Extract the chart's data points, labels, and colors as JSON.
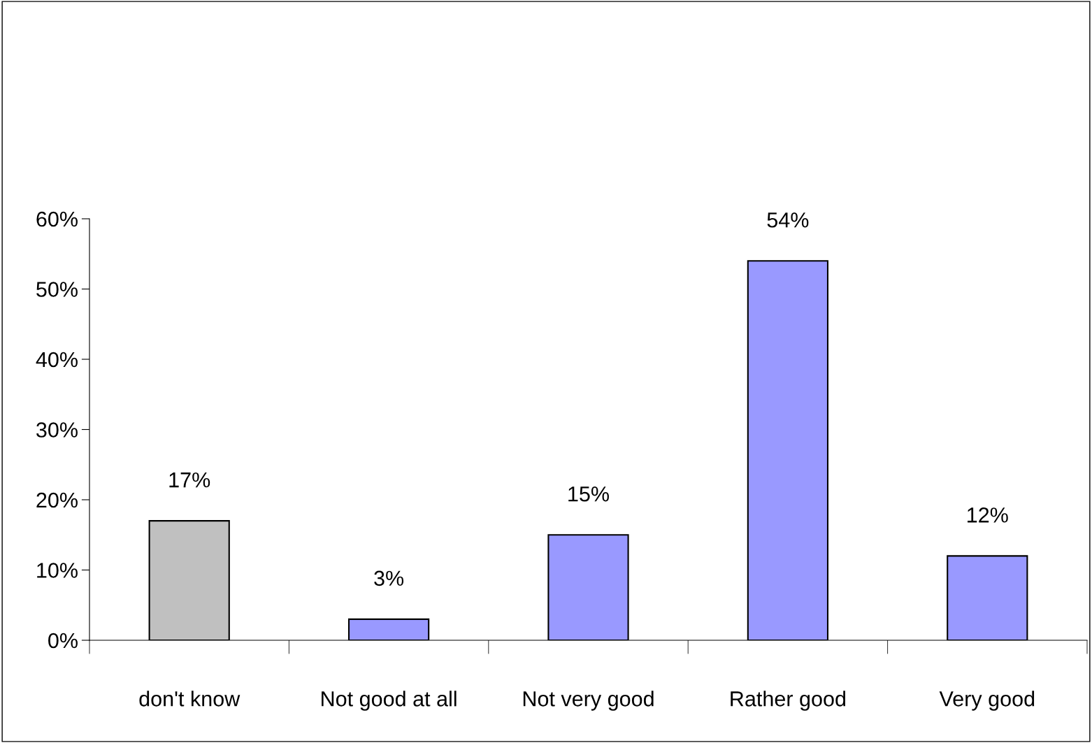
{
  "chart_data": {
    "type": "bar",
    "categories": [
      "don't know",
      "Not good at all",
      "Not very good",
      "Rather good",
      "Very good"
    ],
    "values": [
      17,
      3,
      15,
      54,
      12
    ],
    "colors": [
      "#c0c0c0",
      "#9999ff",
      "#9999ff",
      "#9999ff",
      "#9999ff"
    ],
    "value_labels": [
      "17%",
      "3%",
      "15%",
      "54%",
      "12%"
    ],
    "ylim": [
      0,
      60
    ],
    "yticks": [
      {
        "value": 0,
        "label": "0%"
      },
      {
        "value": 10,
        "label": "10%"
      },
      {
        "value": 20,
        "label": "20%"
      },
      {
        "value": 30,
        "label": "30%"
      },
      {
        "value": 40,
        "label": "40%"
      },
      {
        "value": 50,
        "label": "50%"
      },
      {
        "value": 60,
        "label": "60%"
      }
    ],
    "grid": false,
    "legend": false
  }
}
